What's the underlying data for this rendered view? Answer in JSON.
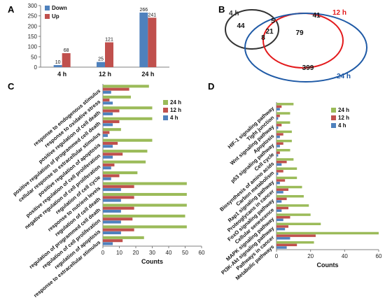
{
  "panel_labels": {
    "a": "A",
    "b": "B",
    "c": "C",
    "d": "D"
  },
  "chart_data": [
    {
      "panel": "A",
      "type": "bar",
      "categories": [
        "4 h",
        "12 h",
        "24 h"
      ],
      "series": [
        {
          "name": "Down",
          "color": "#4f81bd",
          "values": [
            10,
            25,
            266
          ]
        },
        {
          "name": "Up",
          "color": "#c0504d",
          "values": [
            68,
            121,
            241
          ]
        }
      ],
      "ylim": [
        0,
        300
      ],
      "yticks": [
        "0",
        "50",
        "100",
        "150",
        "200",
        "250",
        "300"
      ],
      "data_labels": true,
      "legend": "top-left"
    },
    {
      "panel": "B",
      "type": "venn",
      "sets": [
        {
          "name": "4 h",
          "color": "#333333"
        },
        {
          "name": "12 h",
          "color": "#e31a1c"
        },
        {
          "name": "24 h",
          "color": "#1f5aa6"
        }
      ],
      "regions": {
        "only_4h": 44,
        "only_12h": 41,
        "only_24h": 399,
        "4h_12h": 5,
        "4h_24h": 8,
        "12h_24h": 79,
        "all": 21
      }
    },
    {
      "panel": "C",
      "type": "bar",
      "orientation": "horizontal",
      "categories": [
        "response to endogenous stimulus",
        "response to oxidative stress",
        "positive regulation of cell death",
        "positive regulation of programmed cell death",
        "cellular response to extracellular stimulus",
        "positive regulation of apoptosis",
        "positive regulation of cell proliferation",
        "negative regulation of cell proliferation",
        "regulation of cell cycle",
        "response to nutrient levels",
        "regulation of cell death",
        "regulation of programmed cell death",
        "regulation of cell proliferation",
        "regulation of apoptosis",
        "response to extracellular stimulus"
      ],
      "series": [
        {
          "name": "24 h",
          "color": "#9bbb59",
          "values": [
            28,
            17,
            30,
            30,
            11,
            30,
            27,
            26,
            21,
            51,
            51,
            51,
            50,
            51,
            25
          ]
        },
        {
          "name": "12 h",
          "color": "#c0504d",
          "values": [
            16,
            4,
            10,
            10,
            4,
            9,
            12,
            7,
            10,
            19,
            19,
            19,
            18,
            19,
            12
          ]
        },
        {
          "name": "4 h",
          "color": "#4f81bd",
          "values": [
            5,
            6,
            6,
            6,
            3,
            6,
            6,
            5,
            5,
            11,
            11,
            11,
            11,
            11,
            6
          ]
        }
      ],
      "xlabel": "Counts",
      "xlim": [
        0,
        60
      ],
      "xticks": [
        "0",
        "10",
        "20",
        "30",
        "40",
        "50",
        "60"
      ],
      "legend": "top-right"
    },
    {
      "panel": "D",
      "type": "bar",
      "orientation": "horizontal",
      "categories": [
        "HIF-1 signaling pathway",
        "Tight junction",
        "Wnt signaling pathway",
        "Apoptosis",
        "p53 signaling pathway",
        "Cell cycle",
        "Biosynthesis of amino acids",
        "Carbon metabolism",
        "Rap1 signaling pathway",
        "Proteoglycans in cancer",
        "FoxO signaling pathway",
        "Cellular senescence",
        "MAPK signaling pathway",
        "PI3K-Akt signaling pathway",
        "Pathways in cancer",
        "Metabolic pathways"
      ],
      "series": [
        {
          "name": "24 h",
          "color": "#9bbb59",
          "values": [
            10,
            8,
            8,
            9,
            9,
            8,
            10,
            12,
            12,
            15,
            16,
            19,
            20,
            26,
            60,
            22
          ]
        },
        {
          "name": "12 h",
          "color": "#c0504d",
          "values": [
            3,
            2,
            3,
            4,
            4,
            2,
            6,
            4,
            5,
            7,
            6,
            7,
            8,
            7,
            23,
            12
          ]
        },
        {
          "name": "4 h",
          "color": "#4f81bd",
          "values": [
            2,
            1,
            1,
            2,
            2,
            1,
            3,
            1,
            2,
            4,
            3,
            3,
            4,
            5,
            8,
            6
          ]
        }
      ],
      "xlabel": "Counts",
      "xlim": [
        0,
        60
      ],
      "xticks": [
        "0",
        "20",
        "40",
        "60"
      ],
      "legend": "top-right"
    }
  ]
}
